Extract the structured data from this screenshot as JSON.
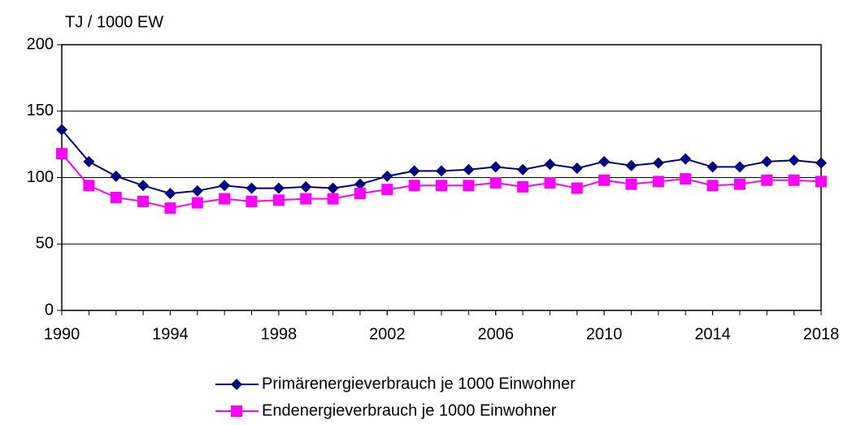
{
  "chart_data": {
    "type": "line",
    "y_label": "TJ / 1000 EW",
    "x": [
      1990,
      1991,
      1992,
      1993,
      1994,
      1995,
      1996,
      1997,
      1998,
      1999,
      2000,
      2001,
      2002,
      2003,
      2004,
      2005,
      2006,
      2007,
      2008,
      2009,
      2010,
      2011,
      2012,
      2013,
      2014,
      2015,
      2016,
      2017,
      2018
    ],
    "series": [
      {
        "name": "Primärenergieverbrauch je 1000 Einwohner",
        "color": "#000080",
        "marker": "diamond",
        "values": [
          136,
          112,
          101,
          94,
          88,
          90,
          94,
          92,
          92,
          93,
          92,
          95,
          101,
          105,
          105,
          106,
          108,
          106,
          110,
          107,
          112,
          109,
          111,
          114,
          108,
          108,
          112,
          113,
          111
        ]
      },
      {
        "name": "Endenergieverbrauch je 1000 Einwohner",
        "color": "#ff00ff",
        "marker": "square",
        "values": [
          118,
          94,
          85,
          82,
          77,
          81,
          84,
          82,
          83,
          84,
          84,
          88,
          91,
          94,
          94,
          94,
          96,
          93,
          96,
          92,
          98,
          95,
          97,
          99,
          94,
          95,
          98,
          98,
          97
        ]
      }
    ],
    "xlim": [
      1990,
      2018
    ],
    "xticks": [
      1990,
      1994,
      1998,
      2002,
      2006,
      2010,
      2014,
      2018
    ],
    "ylim": [
      0,
      200
    ],
    "yticks": [
      0,
      50,
      100,
      150,
      200
    ],
    "grid": true
  }
}
